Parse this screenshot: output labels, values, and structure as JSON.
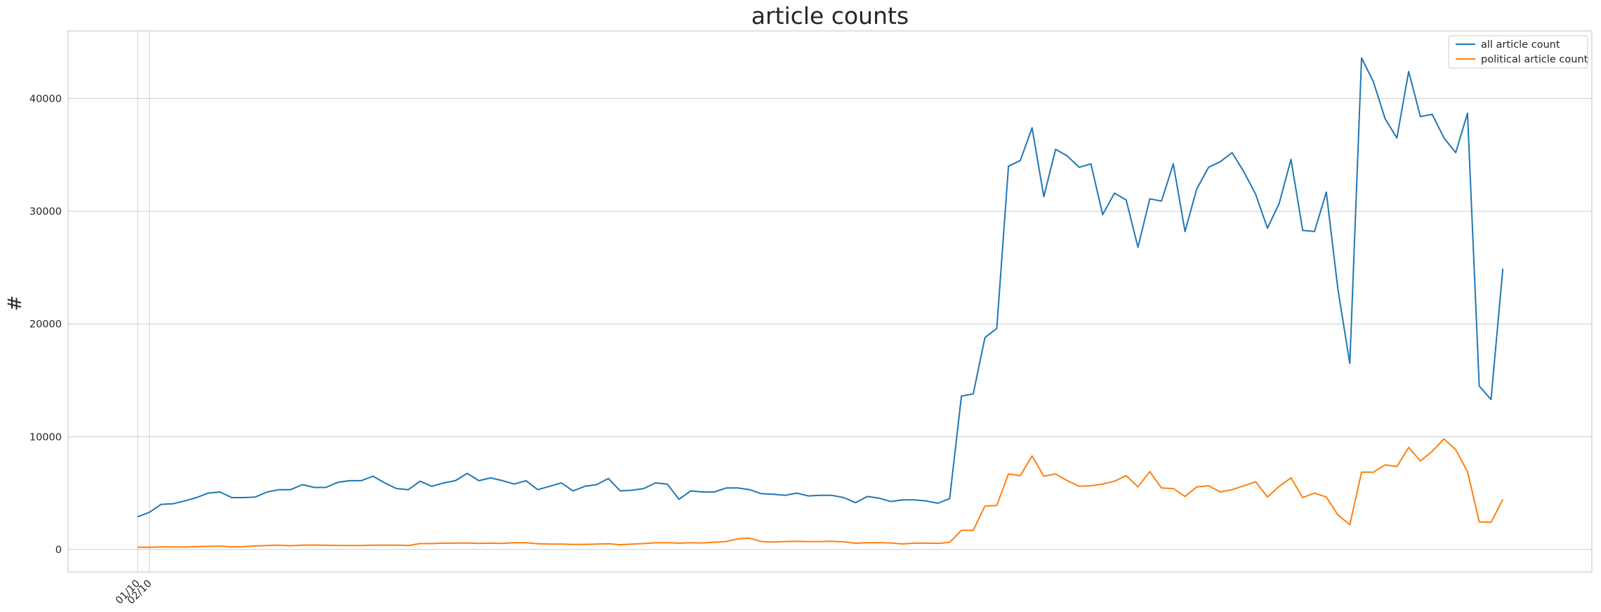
{
  "chart_data": {
    "type": "line",
    "title": "article counts",
    "xlabel": "",
    "ylabel": "#",
    "ylim": [
      -2000,
      46000
    ],
    "xtick_labels": [
      "01/10",
      "02/10"
    ],
    "yticks": [
      0,
      10000,
      20000,
      30000,
      40000
    ],
    "grid": true,
    "legend_position": "top-right",
    "series": [
      {
        "name": "all article count",
        "color": "#1f77b4",
        "values": [
          2900,
          3300,
          4000,
          4050,
          4300,
          4600,
          5000,
          5100,
          4600,
          4600,
          4650,
          5100,
          5300,
          5300,
          5750,
          5500,
          5500,
          5950,
          6100,
          6100,
          6500,
          5900,
          5400,
          5300,
          6050,
          5600,
          5900,
          6100,
          6750,
          6100,
          6350,
          6100,
          5800,
          6100,
          5300,
          5600,
          5900,
          5200,
          5600,
          5750,
          6300,
          5200,
          5250,
          5400,
          5900,
          5800,
          4450,
          5200,
          5100,
          5100,
          5450,
          5450,
          5300,
          4950,
          4900,
          4800,
          5000,
          4750,
          4800,
          4800,
          4600,
          4150,
          4700,
          4550,
          4250,
          4400,
          4400,
          4300,
          4100,
          4500,
          13600,
          13800,
          18800,
          19600,
          34000,
          34500,
          37400,
          31300,
          35500,
          34900,
          33900,
          34200,
          29700,
          31600,
          31000,
          26800,
          31100,
          30900,
          34200,
          28200,
          32000,
          33900,
          34400,
          35200,
          33500,
          31500,
          28500,
          30700,
          34600,
          28300,
          28200,
          31700,
          23000,
          16500,
          43600,
          41500,
          38200,
          36500,
          42400,
          38400,
          38600,
          36500,
          35200,
          38700,
          14500,
          13300,
          24900
        ]
      },
      {
        "name": "political article count",
        "color": "#ff7f0e",
        "values": [
          200,
          200,
          220,
          230,
          210,
          250,
          270,
          300,
          230,
          250,
          310,
          350,
          380,
          330,
          380,
          400,
          370,
          360,
          350,
          350,
          380,
          380,
          380,
          350,
          520,
          520,
          560,
          560,
          580,
          540,
          560,
          540,
          600,
          600,
          500,
          480,
          480,
          440,
          450,
          480,
          500,
          420,
          470,
          520,
          590,
          600,
          560,
          590,
          580,
          640,
          700,
          950,
          1000,
          700,
          650,
          700,
          720,
          700,
          700,
          720,
          680,
          550,
          600,
          600,
          580,
          490,
          560,
          560,
          540,
          630,
          1700,
          1700,
          3850,
          3900,
          6700,
          6550,
          8300,
          6500,
          6700,
          6100,
          5600,
          5650,
          5800,
          6050,
          6550,
          5550,
          6900,
          5450,
          5400,
          4700,
          5550,
          5650,
          5100,
          5300,
          5650,
          6000,
          4650,
          5600,
          6350,
          4600,
          5000,
          4650,
          3050,
          2200,
          6850,
          6850,
          7500,
          7350,
          9050,
          7850,
          8700,
          9800,
          8850,
          6900,
          2450,
          2400,
          4450
        ]
      }
    ]
  }
}
